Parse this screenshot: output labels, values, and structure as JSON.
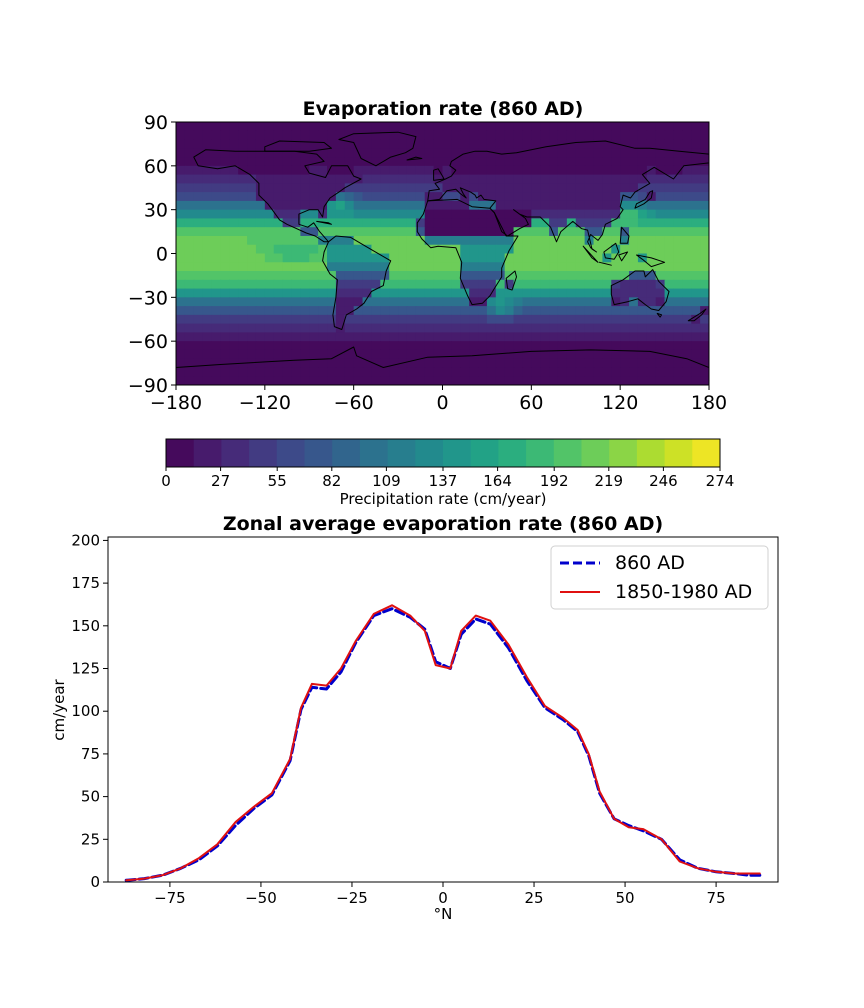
{
  "colors": {
    "viridis": [
      "#440154",
      "#482374",
      "#404387",
      "#345e8d",
      "#29788e",
      "#20908d",
      "#22a884",
      "#44bf70",
      "#7ad151",
      "#bddf26",
      "#fde725"
    ],
    "series_860": "#0000cc",
    "series_ref": "#e01010",
    "coastline": "#000000"
  },
  "chart_data": [
    {
      "type": "heatmap",
      "title": "Evaporation rate (860 AD)",
      "xlim": [
        -180,
        180
      ],
      "ylim": [
        -90,
        90
      ],
      "xticks": [
        "−180",
        "−120",
        "−60",
        "0",
        "60",
        "120",
        "180"
      ],
      "xtick_values": [
        -180,
        -120,
        -60,
        0,
        60,
        120,
        180
      ],
      "yticks": [
        "90",
        "60",
        "30",
        "0",
        "−30",
        "−60",
        "−90"
      ],
      "ytick_values": [
        90,
        60,
        30,
        0,
        -30,
        -60,
        -90
      ],
      "colorbar": {
        "label": "Precipitation rate (cm/year)",
        "ticks": [
          "0",
          "27",
          "55",
          "82",
          "109",
          "137",
          "164",
          "192",
          "219",
          "246",
          "274"
        ],
        "tick_values": [
          0,
          27,
          55,
          82,
          109,
          137,
          164,
          192,
          219,
          246,
          274
        ],
        "range": [
          0,
          274
        ],
        "levels": 20
      }
    },
    {
      "type": "line",
      "title": "Zonal average evaporation rate (860 AD)",
      "xlabel": "°N",
      "ylabel": "cm/year",
      "xlim": [
        -92,
        92
      ],
      "ylim": [
        0,
        202
      ],
      "xticks": [
        "−75",
        "−50",
        "−25",
        "0",
        "25",
        "50",
        "75"
      ],
      "xtick_values": [
        -75,
        -50,
        -25,
        0,
        25,
        50,
        75
      ],
      "yticks": [
        "0",
        "25",
        "50",
        "75",
        "100",
        "125",
        "150",
        "175",
        "200"
      ],
      "ytick_values": [
        0,
        25,
        50,
        75,
        100,
        125,
        150,
        175,
        200
      ],
      "legend_position": "upper-right",
      "x": [
        -87,
        -82,
        -77,
        -72,
        -67,
        -62,
        -57,
        -52,
        -47,
        -42,
        -39,
        -36,
        -32,
        -28,
        -24,
        -19,
        -14,
        -9,
        -5,
        -2,
        2,
        5,
        9,
        13,
        18,
        23,
        28,
        33,
        37,
        40,
        43,
        47,
        51,
        55,
        60,
        65,
        70,
        75,
        80,
        84,
        87
      ],
      "series": [
        {
          "name": "860 AD",
          "style": "dashed",
          "values": [
            1,
            2,
            4,
            8,
            13,
            21,
            33,
            43,
            51,
            71,
            101,
            114,
            113,
            123,
            140,
            156,
            160,
            155,
            148,
            129,
            125,
            145,
            154,
            151,
            137,
            118,
            102,
            95,
            88,
            74,
            52,
            37,
            33,
            30,
            25,
            13,
            8,
            6,
            5,
            4,
            4
          ]
        },
        {
          "name": "1850-1980 AD",
          "style": "solid",
          "values": [
            1,
            2,
            4,
            8,
            14,
            22,
            35,
            44,
            52,
            72,
            102,
            116,
            115,
            125,
            141,
            157,
            162,
            156,
            147,
            127,
            125,
            147,
            156,
            153,
            139,
            120,
            103,
            96,
            89,
            75,
            53,
            37,
            32,
            31,
            25,
            12,
            8,
            6,
            5,
            5,
            5
          ]
        }
      ]
    }
  ]
}
